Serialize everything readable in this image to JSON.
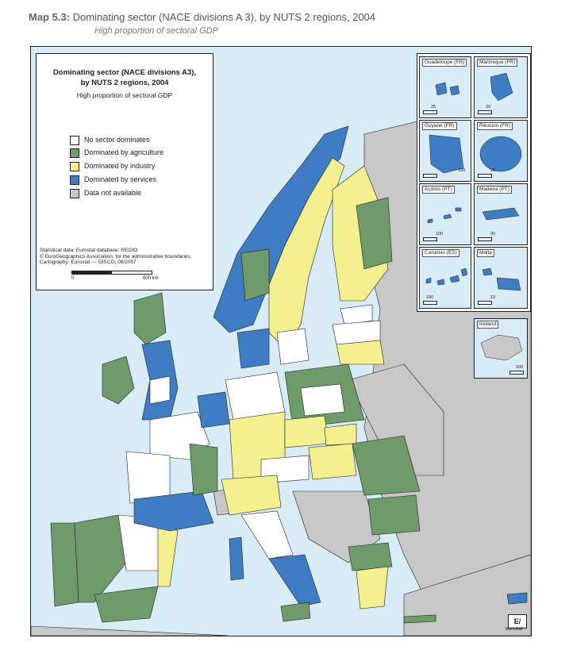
{
  "header": {
    "map_number": "Map 5.3:",
    "title": "Dominating sector (NACE divisions A 3), by NUTS 2 regions, 2004",
    "subtitle": "High proportion of sectoral GDP"
  },
  "legend": {
    "title_line1": "Dominating sector (NACE divisions A3),",
    "title_line2": "by NUTS 2 regions, 2004",
    "subtitle": "High proportion of sectoral GDP",
    "items": [
      {
        "label": "No sector dominates",
        "color": "#ffffff"
      },
      {
        "label": "Dominated by agriculture",
        "color": "#6f9b6b"
      },
      {
        "label": "Dominated by industry",
        "color": "#f5f08f"
      },
      {
        "label": "Dominated by services",
        "color": "#3e7cc4"
      },
      {
        "label": "Data not available",
        "color": "#c7c7c7"
      }
    ],
    "source_line1": "Statistical data: Eurostat database: REGIO",
    "source_line2": "© EuroGeographics Association, for the administrative boundaries",
    "source_line3": "Cartography: Eurostat — GISCO, 06/2007",
    "scale_zero": "0",
    "scale_max": "600 km"
  },
  "insets": [
    {
      "name": "Guadeloupe (FR)",
      "scale": "25"
    },
    {
      "name": "Martinique (FR)",
      "scale": "20"
    },
    {
      "name": "Guyane (FR)",
      "scale": "100"
    },
    {
      "name": "Réunion (FR)",
      "scale": "20"
    },
    {
      "name": "Açores (PT)",
      "scale": "100"
    },
    {
      "name": "Madeira (PT)",
      "scale": "20"
    },
    {
      "name": "Canarias (ES)",
      "scale": "100"
    },
    {
      "name": "Malta",
      "scale": "10"
    },
    {
      "name": "Iceland",
      "scale": "100"
    }
  ],
  "logo": {
    "label": "eurostat"
  },
  "colors": {
    "sea": "#d7ecf6",
    "land_outside": "#c7c7c7",
    "none": "#ffffff",
    "agriculture": "#6f9b6b",
    "industry": "#f5f08f",
    "services": "#3e7cc4"
  }
}
